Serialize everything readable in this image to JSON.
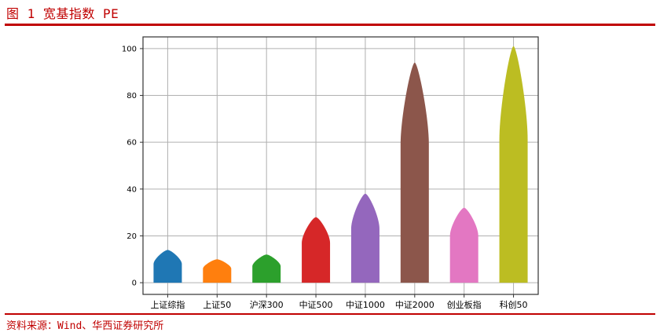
{
  "header": {
    "title": "图 1 宽基指数 PE"
  },
  "footer": {
    "source": "资料来源：Wind、华西证券研究所"
  },
  "chart_data": {
    "type": "bar",
    "title": "",
    "xlabel": "",
    "ylabel": "",
    "ylim": [
      -5,
      105
    ],
    "yticks": [
      0,
      20,
      40,
      60,
      80,
      100
    ],
    "grid": true,
    "categories": [
      "上证综指",
      "上证50",
      "沪深300",
      "中证500",
      "中证1000",
      "中证2000",
      "创业板指",
      "科创50"
    ],
    "body_values": [
      8,
      6,
      7,
      17,
      23,
      59,
      20,
      61
    ],
    "values": [
      14,
      10,
      12,
      28,
      38,
      94,
      32,
      101
    ],
    "colors": [
      "#1f77b4",
      "#ff7f0e",
      "#2ca02c",
      "#d62728",
      "#9467bd",
      "#8c564b",
      "#e377c2",
      "#bcbd22"
    ]
  }
}
